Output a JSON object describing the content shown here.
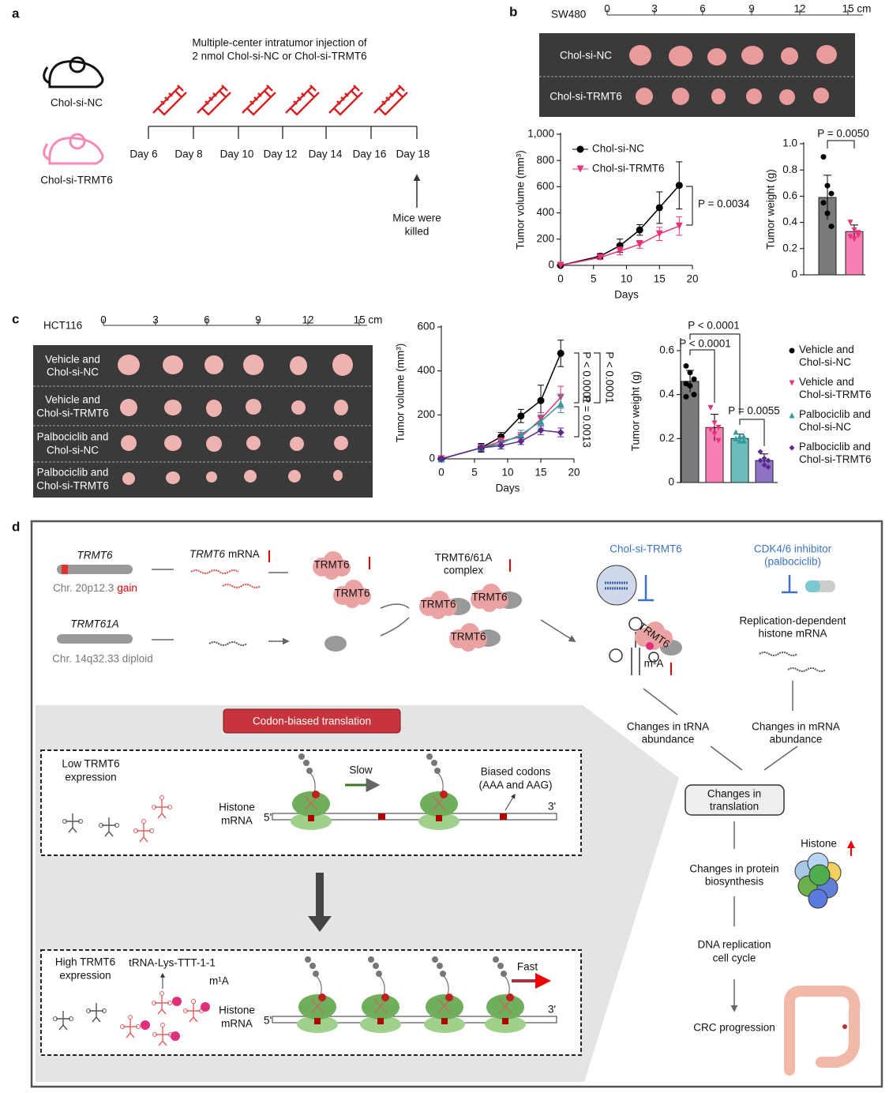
{
  "panel_labels": [
    "a",
    "b",
    "c",
    "d"
  ],
  "panel_a": {
    "injection_title": [
      "Multiple-center intratumor injection of",
      "2 nmol Chol-si-NC or Chol-si-TRMT6"
    ],
    "groups": [
      "Chol-si-NC",
      "Chol-si-TRMT6"
    ],
    "days": [
      "Day 6",
      "Day 8",
      "Day 10",
      "Day 12",
      "Day 14",
      "Day 16",
      "Day 18"
    ],
    "endpoint": [
      "Mice were",
      "killed"
    ]
  },
  "panel_b": {
    "cell_line": "SW480",
    "ruler": [
      "0",
      "3",
      "6",
      "9",
      "12",
      "15 cm"
    ],
    "rows": [
      "Chol-si-NC",
      "Chol-si-TRMT6"
    ]
  },
  "panel_c": {
    "cell_line": "HCT116",
    "ruler": [
      "0",
      "3",
      "6",
      "9",
      "12",
      "15 cm"
    ],
    "rows": [
      [
        "Vehicle and",
        "Chol-si-NC"
      ],
      [
        "Vehicle and",
        "Chol-si-TRMT6"
      ],
      [
        "Palbociclib and",
        "Chol-si-NC"
      ],
      [
        "Palbociclib and",
        "Chol-si-TRMT6"
      ]
    ]
  },
  "chart_data": [
    {
      "type": "line",
      "x_label": "Days",
      "y_label": "Tumor volume (mm³)",
      "x": [
        0,
        6,
        9,
        12,
        15,
        18
      ],
      "xlim": [
        0,
        20
      ],
      "xticks": [
        0,
        5,
        10,
        15,
        20
      ],
      "ylim": [
        0,
        1000
      ],
      "yticks": [
        0,
        200,
        400,
        600,
        800,
        {
          "value": 1000,
          "label": "1,000"
        }
      ],
      "legend": "upper left",
      "series": [
        {
          "name": "Chol-si-NC",
          "color": "#000000",
          "marker": "circle",
          "values": [
            0,
            70,
            150,
            270,
            440,
            610
          ],
          "errors": [
            0,
            20,
            50,
            40,
            120,
            180
          ]
        },
        {
          "name": "Chol-si-TRMT6",
          "color": "#e8337a",
          "marker": "triangle-down",
          "values": [
            0,
            60,
            110,
            160,
            240,
            300
          ],
          "errors": [
            0,
            15,
            30,
            30,
            50,
            70
          ]
        }
      ],
      "annotations": [
        "P = 0.0034"
      ]
    },
    {
      "type": "bar",
      "y_label": "Tumor weight (g)",
      "ylim": [
        0,
        1.0
      ],
      "yticks": [
        0,
        0.2,
        0.4,
        0.6,
        0.8,
        {
          "value": 1.0,
          "label": "1.0"
        }
      ],
      "series": [
        {
          "color": "#7a7a7a",
          "point_color": "#000000",
          "marker": "circle",
          "values": [
            0.59
          ],
          "errors": [
            0.17
          ],
          "points": [
            0.9,
            0.68,
            0.62,
            0.55,
            0.47,
            0.37
          ]
        },
        {
          "color": "#f77fb4",
          "point_color": "#e8337a",
          "marker": "triangle-down",
          "values": [
            0.33
          ],
          "errors": [
            0.05
          ],
          "points": [
            0.4,
            0.34,
            0.3,
            0.29,
            0.27,
            0.32
          ]
        }
      ],
      "annotations": [
        "P = 0.0050"
      ]
    },
    {
      "type": "line",
      "x_label": "Days",
      "y_label": "Tumor volume (mm³)",
      "x": [
        0,
        6,
        9,
        12,
        15,
        18
      ],
      "xlim": [
        0,
        20
      ],
      "xticks": [
        0,
        5,
        10,
        15,
        20
      ],
      "ylim": [
        0,
        600
      ],
      "yticks": [
        0,
        200,
        400,
        600
      ],
      "series": [
        {
          "color": "#000000",
          "marker": "circle",
          "values": [
            0,
            50,
            100,
            195,
            265,
            480
          ],
          "errors": [
            0,
            20,
            20,
            30,
            70,
            60
          ]
        },
        {
          "color": "#e8337a",
          "marker": "triangle-down",
          "values": [
            0,
            50,
            80,
            100,
            180,
            280
          ],
          "errors": [
            0,
            15,
            15,
            20,
            30,
            50
          ]
        },
        {
          "color": "#2e9a9a",
          "marker": "triangle-up",
          "values": [
            0,
            50,
            70,
            110,
            170,
            250
          ],
          "errors": [
            0,
            15,
            15,
            20,
            30,
            40
          ]
        },
        {
          "color": "#5b2a8f",
          "marker": "diamond",
          "values": [
            0,
            50,
            60,
            80,
            130,
            120
          ],
          "errors": [
            0,
            15,
            15,
            15,
            20,
            20
          ]
        }
      ],
      "annotations": [
        "P < 0.0001",
        "P < 0.0001",
        "P = 0.0013"
      ]
    },
    {
      "type": "bar",
      "y_label": "Tumor weight (g)",
      "ylim": [
        0,
        0.65
      ],
      "yticks": [
        0,
        0.2,
        0.4,
        0.6
      ],
      "legend": "right",
      "series": [
        {
          "name": "Vehicle and Chol-si-NC",
          "color": "#7a7a7a",
          "point_color": "#000000",
          "marker": "circle",
          "values": [
            0.46
          ],
          "errors": [
            0.05
          ],
          "points": [
            0.53,
            0.5,
            0.47,
            0.45,
            0.44,
            0.4,
            0.39
          ]
        },
        {
          "name": "Vehicle and Chol-si-TRMT6",
          "color": "#f77fb4",
          "point_color": "#e8337a",
          "marker": "triangle-down",
          "values": [
            0.25
          ],
          "errors": [
            0.06
          ],
          "points": [
            0.34,
            0.27,
            0.25,
            0.24,
            0.22,
            0.19
          ]
        },
        {
          "name": "Palbociclib and Chol-si-NC",
          "color": "#6cbcbc",
          "point_color": "#2e9a9a",
          "marker": "triangle-up",
          "values": [
            0.2
          ],
          "errors": [
            0.02
          ],
          "points": [
            0.23,
            0.21,
            0.21,
            0.2,
            0.19,
            0.19
          ]
        },
        {
          "name": "Palbociclib and Chol-si-TRMT6",
          "color": "#8f74c6",
          "point_color": "#5b2a8f",
          "marker": "diamond",
          "values": [
            0.1
          ],
          "errors": [
            0.03
          ],
          "points": [
            0.14,
            0.11,
            0.1,
            0.1,
            0.08,
            0.07
          ]
        }
      ],
      "annotations": [
        "P < 0.0001",
        "P < 0.0001",
        "P = 0.0055"
      ]
    }
  ],
  "panel_d": {
    "trmt6_gene": "TRMT6",
    "trmt6_locus": "Chr. 20p12.3",
    "trmt6_gain": "gain",
    "mrna_gene": "TRMT6",
    "mrna_word": "mRNA",
    "protein_labels": [
      "TRMT6",
      "TRMT6",
      "TRMT6",
      "TRMT6",
      "TRMT6",
      "TRMT6"
    ],
    "complex": [
      "TRMT6/61A",
      "complex"
    ],
    "trmt61a_gene": "TRMT61A",
    "trmt61a_locus": "Chr. 14q32.33 diploid",
    "sirna": "Chol-si-TRMT6",
    "inhibitor": [
      "CDK4/6 inhibitor",
      "(palbociclib)"
    ],
    "histone_mrna": [
      "Replication-dependent",
      "histone mRNA"
    ],
    "m1a": [
      "m¹A",
      "m¹A"
    ],
    "trna_change": [
      "Changes in tRNA",
      "abundance"
    ],
    "mrna_change": [
      "Changes in mRNA",
      "abundance"
    ],
    "codon_title": "Codon-biased translation",
    "low": [
      "Low TRMT6",
      "expression"
    ],
    "high": [
      "High TRMT6",
      "expression"
    ],
    "mrna_label": [
      [
        "Histone",
        "mRNA"
      ],
      [
        "Histone",
        "mRNA"
      ]
    ],
    "ends": [
      [
        "5'",
        "3'"
      ],
      [
        "5'",
        "3'"
      ]
    ],
    "slow": "Slow",
    "fast": "Fast",
    "biased": [
      "Biased codons",
      "(AAA and AAG)"
    ],
    "trna_lys": "tRNA-Lys-TTT-1-1",
    "translation": [
      "Changes in",
      "translation"
    ],
    "protein": [
      "Changes in protein",
      "biosynthesis"
    ],
    "histone": "Histone",
    "dna": [
      "DNA replication",
      "cell cycle"
    ],
    "crc": "CRC progression"
  }
}
